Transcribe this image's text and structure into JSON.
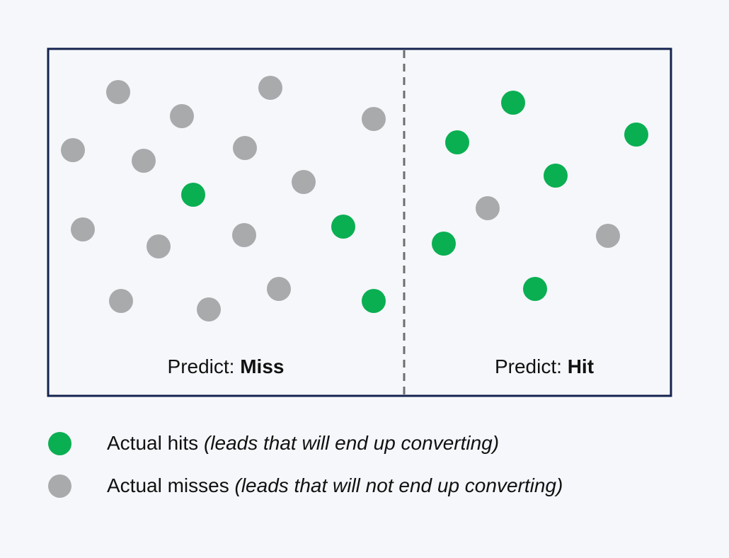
{
  "colors": {
    "hit": "#0aaf52",
    "miss": "#a9aaab",
    "frame": "#14234f",
    "divider": "#6e6e6e",
    "background": "#f5f7fa"
  },
  "regions": {
    "miss": {
      "prefix": "Predict: ",
      "emphasis": "Miss"
    },
    "hit": {
      "prefix": "Predict: ",
      "emphasis": "Hit"
    }
  },
  "legend": {
    "hits": {
      "label": "Actual hits ",
      "note": "(leads that will end up converting)",
      "color_key": "hit"
    },
    "misses": {
      "label": "Actual misses ",
      "note": "(leads that will not end up converting)",
      "color_key": "miss"
    }
  }
}
